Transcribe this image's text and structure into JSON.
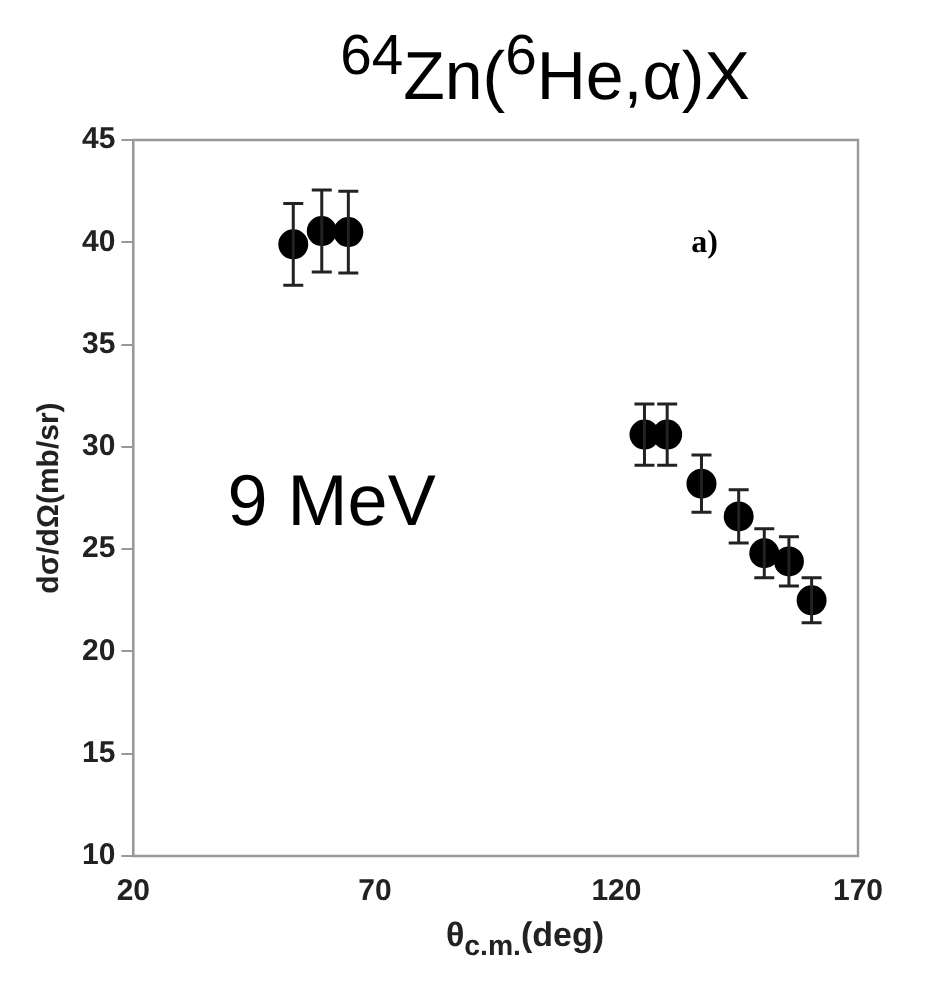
{
  "chart_data": {
    "type": "scatter",
    "title": "$^{64}$Zn($^{6}$He,α)X",
    "xlabel": "θ$_{c.m.}$(deg)",
    "ylabel": "dσ/dΩ(mb/sr)",
    "annotations": [
      "a)",
      "9 MeV"
    ],
    "x": [
      53.1,
      59,
      64.5,
      125.8,
      130.5,
      137.6,
      145.3,
      150.6,
      155.7,
      160.4
    ],
    "series": [
      {
        "color": "#000000",
        "values": [
          39.9,
          40.55,
          40.5,
          30.6,
          30.6,
          28.2,
          26.6,
          24.8,
          24.4,
          22.5
        ],
        "errors": [
          2,
          2,
          2,
          1.5,
          1.5,
          1.4,
          1.3,
          1.2,
          1.2,
          1.1
        ]
      }
    ],
    "xlim": [
      20,
      170
    ],
    "xticks": [
      20,
      70,
      120,
      170
    ],
    "ylim": [
      10,
      45
    ],
    "yticks": [
      10,
      15,
      20,
      25,
      30,
      35,
      40,
      45
    ],
    "grid": false,
    "legend": false,
    "marker": "circle"
  }
}
